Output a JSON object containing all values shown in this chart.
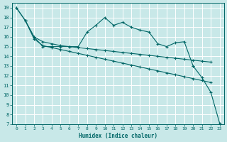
{
  "xlabel": "Humidex (Indice chaleur)",
  "bg_color": "#c8e8e8",
  "grid_color": "#ffffff",
  "line_color": "#006666",
  "ylim": [
    7,
    19.5
  ],
  "xlim": [
    -0.5,
    23.5
  ],
  "yticks": [
    7,
    8,
    9,
    10,
    11,
    12,
    13,
    14,
    15,
    16,
    17,
    18,
    19
  ],
  "xticks": [
    0,
    1,
    2,
    3,
    4,
    5,
    6,
    7,
    8,
    9,
    10,
    11,
    12,
    13,
    14,
    15,
    16,
    17,
    18,
    19,
    20,
    21,
    22,
    23
  ],
  "series": [
    {
      "x": [
        0,
        1
      ],
      "y": [
        19.0,
        17.7
      ]
    },
    {
      "x": [
        1,
        2,
        3,
        4,
        5,
        6,
        7,
        8,
        9,
        10,
        11,
        12,
        13,
        14,
        15,
        16,
        17,
        18,
        19,
        20
      ],
      "y": [
        17.7,
        16.0,
        15.0,
        15.0,
        15.0,
        15.0,
        15.0,
        16.5,
        17.2,
        18.0,
        17.2,
        17.5,
        17.0,
        16.7,
        16.5,
        15.3,
        15.0,
        15.4,
        15.5,
        13.0
      ]
    },
    {
      "x": [
        20,
        21,
        22,
        23
      ],
      "y": [
        13.0,
        11.8,
        10.3,
        7.1
      ]
    },
    {
      "x": [
        0,
        1,
        2,
        3,
        4,
        5,
        6,
        7,
        8,
        9,
        10,
        11,
        12,
        13,
        14,
        15,
        16,
        17,
        18,
        19,
        20,
        21,
        22
      ],
      "y": [
        19.0,
        17.7,
        15.8,
        15.1,
        14.9,
        14.7,
        14.5,
        14.3,
        14.1,
        13.9,
        13.7,
        13.5,
        13.3,
        13.1,
        12.9,
        12.7,
        12.5,
        12.3,
        12.1,
        11.9,
        11.7,
        11.5,
        11.3
      ]
    },
    {
      "x": [
        1,
        2,
        3,
        4,
        5,
        6,
        7,
        8,
        9,
        10,
        11,
        12,
        13,
        14,
        15,
        16,
        17,
        18,
        19,
        20,
        21,
        22
      ],
      "y": [
        17.7,
        16.0,
        15.5,
        15.3,
        15.1,
        15.0,
        14.9,
        14.8,
        14.7,
        14.6,
        14.5,
        14.4,
        14.3,
        14.2,
        14.1,
        14.0,
        13.9,
        13.8,
        13.7,
        13.6,
        13.5,
        13.4
      ]
    }
  ]
}
